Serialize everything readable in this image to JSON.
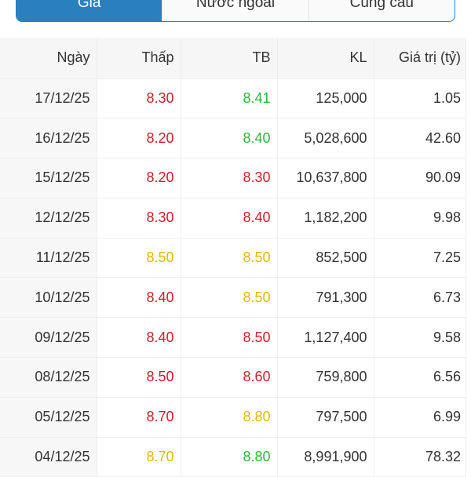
{
  "tabs": [
    {
      "label": "Giá",
      "active": true
    },
    {
      "label": "Nước ngoài",
      "active": false
    },
    {
      "label": "Cung cầu",
      "active": false
    }
  ],
  "colors": {
    "accent": "#2a7fbf",
    "red": "#c8232c",
    "green": "#2fb53a",
    "yellow": "#e6b800"
  },
  "table": {
    "headers": [
      "Ngày",
      "Thấp",
      "TB",
      "KL",
      "Giá trị (tỷ)"
    ],
    "rows": [
      {
        "date": "17/12/25",
        "low": "8.30",
        "low_color": "red",
        "avg": "8.41",
        "avg_color": "green",
        "vol": "125,000",
        "value": "1.05"
      },
      {
        "date": "16/12/25",
        "low": "8.20",
        "low_color": "red",
        "avg": "8.40",
        "avg_color": "green",
        "vol": "5,028,600",
        "value": "42.60"
      },
      {
        "date": "15/12/25",
        "low": "8.20",
        "low_color": "red",
        "avg": "8.30",
        "avg_color": "red",
        "vol": "10,637,800",
        "value": "90.09"
      },
      {
        "date": "12/12/25",
        "low": "8.30",
        "low_color": "red",
        "avg": "8.40",
        "avg_color": "red",
        "vol": "1,182,200",
        "value": "9.98"
      },
      {
        "date": "11/12/25",
        "low": "8.50",
        "low_color": "yellow",
        "avg": "8.50",
        "avg_color": "yellow",
        "vol": "852,500",
        "value": "7.25"
      },
      {
        "date": "10/12/25",
        "low": "8.40",
        "low_color": "red",
        "avg": "8.50",
        "avg_color": "yellow",
        "vol": "791,300",
        "value": "6.73"
      },
      {
        "date": "09/12/25",
        "low": "8.40",
        "low_color": "red",
        "avg": "8.50",
        "avg_color": "red",
        "vol": "1,127,400",
        "value": "9.58"
      },
      {
        "date": "08/12/25",
        "low": "8.50",
        "low_color": "red",
        "avg": "8.60",
        "avg_color": "red",
        "vol": "759,800",
        "value": "6.56"
      },
      {
        "date": "05/12/25",
        "low": "8.70",
        "low_color": "red",
        "avg": "8.80",
        "avg_color": "yellow",
        "vol": "797,500",
        "value": "6.99"
      },
      {
        "date": "04/12/25",
        "low": "8.70",
        "low_color": "yellow",
        "avg": "8.80",
        "avg_color": "green",
        "vol": "8,991,900",
        "value": "78.32"
      }
    ]
  }
}
